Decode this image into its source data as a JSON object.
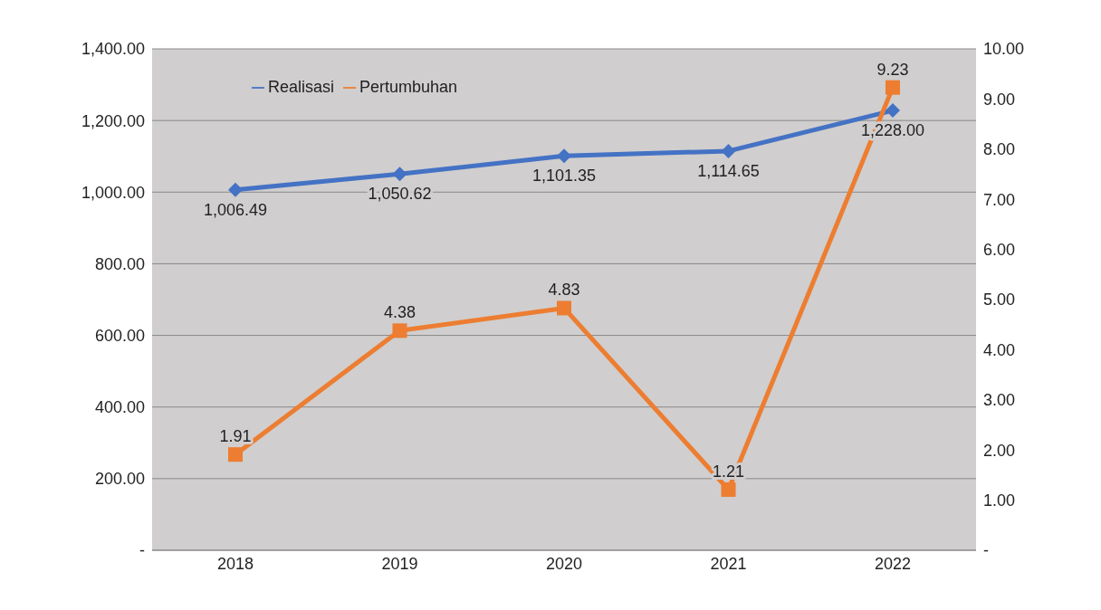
{
  "chart_data": {
    "type": "line",
    "categories": [
      "2018",
      "2019",
      "2020",
      "2021",
      "2022"
    ],
    "series": [
      {
        "name": "Realisasi",
        "color": "#4472c4",
        "marker": "diamond",
        "values": [
          1006.49,
          1050.62,
          1101.35,
          1114.65,
          1228.0
        ],
        "value_labels": [
          "1,006.49",
          "1,050.62",
          "1,101.35",
          "1,114.65",
          "1,228.00"
        ]
      },
      {
        "name": "Pertumbuhan",
        "color": "#ed7d31",
        "marker": "square",
        "axis": "y2",
        "values": [
          1.91,
          4.38,
          4.83,
          1.21,
          9.23
        ],
        "value_labels": [
          "1.91",
          "4.38",
          "4.83",
          "1.21",
          "9.23"
        ]
      }
    ],
    "ylim": [
      0,
      1400
    ],
    "yticks": [
      {
        "value": 0,
        "label": "-"
      },
      {
        "value": 200,
        "label": "200.00"
      },
      {
        "value": 400,
        "label": "400.00"
      },
      {
        "value": 600,
        "label": "600.00"
      },
      {
        "value": 800,
        "label": "800.00"
      },
      {
        "value": 1000,
        "label": "1,000.00"
      },
      {
        "value": 1200,
        "label": "1,200.00"
      },
      {
        "value": 1400,
        "label": "1,400.00"
      }
    ],
    "y2lim": [
      0,
      10
    ],
    "y2ticks": [
      {
        "value": 0,
        "label": "-"
      },
      {
        "value": 1,
        "label": "1.00"
      },
      {
        "value": 2,
        "label": "2.00"
      },
      {
        "value": 3,
        "label": "3.00"
      },
      {
        "value": 4,
        "label": "4.00"
      },
      {
        "value": 5,
        "label": "5.00"
      },
      {
        "value": 6,
        "label": "6.00"
      },
      {
        "value": 7,
        "label": "7.00"
      },
      {
        "value": 8,
        "label": "8.00"
      },
      {
        "value": 9,
        "label": "9.00"
      },
      {
        "value": 10,
        "label": "10.00"
      }
    ],
    "grid": "y",
    "legend": "top left",
    "line_style": "solid"
  }
}
